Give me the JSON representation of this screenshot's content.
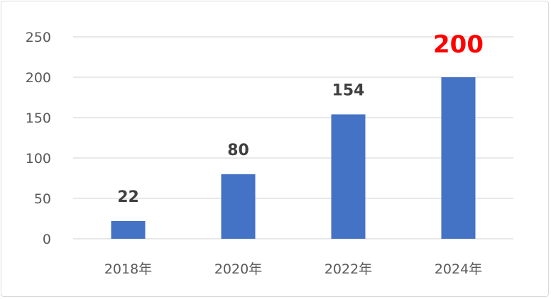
{
  "chart_data": {
    "type": "bar",
    "categories": [
      "2018年",
      "2020年",
      "2022年",
      "2024年"
    ],
    "values": [
      22,
      80,
      154,
      200
    ],
    "data_labels": [
      "22",
      "80",
      "154",
      "200"
    ],
    "highlight_index": 3,
    "ylim": [
      0,
      250
    ],
    "yticks": [
      0,
      50,
      100,
      150,
      200,
      250
    ],
    "ytick_labels": [
      "0",
      "50",
      "100",
      "150",
      "200",
      "250"
    ],
    "grid": true,
    "legend": "none",
    "colors": {
      "bar": "#4472C4",
      "highlight_label": "#FF0000",
      "label": "#404040",
      "grid": "#d9d9d9"
    }
  }
}
